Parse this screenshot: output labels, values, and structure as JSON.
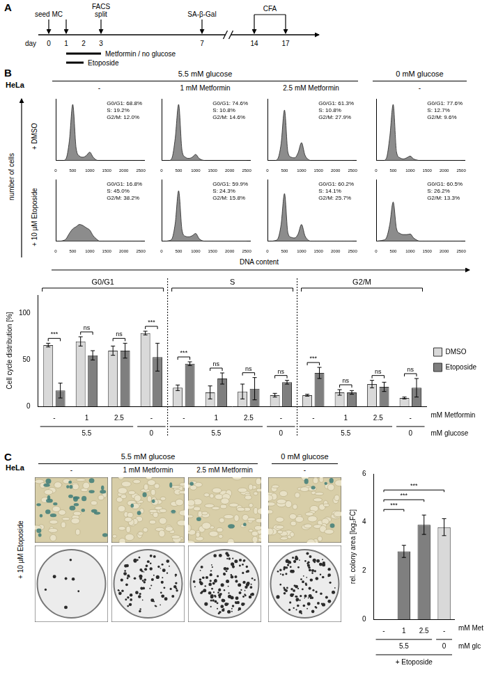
{
  "panel_labels": [
    "A",
    "B",
    "C"
  ],
  "timeline": {
    "day_label": "day",
    "days": [
      0,
      1,
      2,
      3,
      7,
      14,
      17
    ],
    "arrows": [
      0,
      1,
      3,
      7,
      14,
      17
    ],
    "events": [
      {
        "day": 0,
        "label": [
          "seed MC"
        ]
      },
      {
        "day": 3,
        "label": [
          "FACS",
          "split"
        ]
      },
      {
        "day": 7,
        "label": [
          "SA-β-Gal"
        ]
      }
    ],
    "cfa": {
      "label": "CFA",
      "from": 14,
      "to": 17
    },
    "treatments": [
      {
        "label": "Metformin / no glucose",
        "from": 1,
        "to": 3
      },
      {
        "label": "Etoposide",
        "from": 1,
        "to": 2
      }
    ]
  },
  "panel_b": {
    "cell_line": "HeLa",
    "column_groups": [
      {
        "label": "5.5 mM glucose",
        "columns": 3
      },
      {
        "label": "0 mM glucose",
        "columns": 1
      }
    ],
    "columns": [
      "-",
      "1 mM Metformin",
      "2.5 mM Metformin",
      "-"
    ],
    "rows": [
      "+ DMSO",
      "+ 10 µM Etoposide"
    ],
    "y_label": "number of cells",
    "x_label": "DNA content"
  },
  "panel_c": {
    "cell_line": "HeLa",
    "column_groups": [
      {
        "label": "5.5 mM glucose",
        "columns": 3
      },
      {
        "label": "0 mM glucose",
        "columns": 1
      }
    ],
    "columns": [
      "-",
      "1 mM Metformin",
      "2.5 mM Metformin",
      "-"
    ],
    "row_label": "+ 10 µM Etoposide"
  },
  "chart_data": [
    {
      "type": "area",
      "color": "#8c8c8c",
      "grid": false,
      "tick_labels": "x",
      "x": [
        0,
        100,
        200,
        300,
        400,
        500,
        600,
        700,
        800,
        900,
        1000,
        1100,
        1200,
        1300,
        1400,
        1500,
        1600,
        1700,
        1800,
        1900,
        2000,
        2100,
        2200,
        2300,
        2400,
        2500
      ],
      "values": [
        0,
        0,
        0,
        3,
        35,
        100,
        22,
        8,
        6,
        9,
        15,
        6,
        1,
        0,
        0,
        0,
        0,
        0,
        0,
        0,
        0,
        0,
        0,
        0,
        0,
        0
      ],
      "annotations": [
        "G0/G1: 68.8%",
        "S: 19.2%",
        "G2/M: 12.0%"
      ],
      "xlim": [
        0,
        2600
      ],
      "xticks": [
        0,
        500,
        1000,
        1500,
        2000,
        2500
      ],
      "ylim": [
        0,
        110
      ]
    },
    {
      "type": "area",
      "color": "#8c8c8c",
      "grid": false,
      "tick_labels": "x",
      "x": [
        0,
        100,
        200,
        300,
        400,
        500,
        600,
        700,
        800,
        900,
        1000,
        1100,
        1200,
        1300,
        1400,
        1500,
        1600,
        1700,
        1800,
        1900,
        2000,
        2100,
        2200,
        2300,
        2400,
        2500
      ],
      "values": [
        0,
        0,
        0,
        4,
        40,
        100,
        18,
        6,
        4,
        6,
        11,
        4,
        1,
        0,
        0,
        0,
        0,
        0,
        0,
        0,
        0,
        0,
        0,
        0,
        0,
        0
      ],
      "annotations": [
        "G0/G1: 74.6%",
        "S: 10.8%",
        "G2/M: 14.6%"
      ],
      "xlim": [
        0,
        2600
      ],
      "xticks": [
        0,
        500,
        1000,
        1500,
        2000,
        2500
      ],
      "ylim": [
        0,
        110
      ]
    },
    {
      "type": "area",
      "color": "#8c8c8c",
      "grid": false,
      "tick_labels": "x",
      "x": [
        0,
        100,
        200,
        300,
        400,
        500,
        600,
        700,
        800,
        900,
        1000,
        1100,
        1200,
        1300,
        1400,
        1500,
        1600,
        1700,
        1800,
        1900,
        2000,
        2100,
        2200,
        2300,
        2400,
        2500
      ],
      "values": [
        0,
        0,
        0,
        3,
        30,
        90,
        15,
        6,
        5,
        14,
        32,
        10,
        2,
        0,
        0,
        0,
        0,
        0,
        0,
        0,
        0,
        0,
        0,
        0,
        0,
        0
      ],
      "annotations": [
        "G0/G1: 61.3%",
        "S: 10.8%",
        "G2/M: 27.9%"
      ],
      "xlim": [
        0,
        2600
      ],
      "xticks": [
        0,
        500,
        1000,
        1500,
        2000,
        2500
      ],
      "ylim": [
        0,
        110
      ]
    },
    {
      "type": "area",
      "color": "#8c8c8c",
      "grid": false,
      "tick_labels": "x",
      "x": [
        0,
        100,
        200,
        300,
        400,
        500,
        600,
        700,
        800,
        900,
        1000,
        1100,
        1200,
        1300,
        1400,
        1500,
        1600,
        1700,
        1800,
        1900,
        2000,
        2100,
        2200,
        2300,
        2400,
        2500
      ],
      "values": [
        0,
        0,
        0,
        4,
        42,
        100,
        15,
        5,
        3,
        5,
        8,
        3,
        1,
        0,
        0,
        0,
        0,
        0,
        0,
        0,
        0,
        0,
        0,
        0,
        0,
        0
      ],
      "annotations": [
        "G0/G1: 77.6%",
        "S: 12.7%",
        "G2/M: 9.6%"
      ],
      "xlim": [
        0,
        2600
      ],
      "xticks": [
        0,
        500,
        1000,
        1500,
        2000,
        2500
      ],
      "ylim": [
        0,
        110
      ]
    },
    {
      "type": "area",
      "color": "#8c8c8c",
      "grid": false,
      "tick_labels": "x",
      "x": [
        0,
        100,
        200,
        300,
        400,
        500,
        600,
        700,
        800,
        900,
        1000,
        1100,
        1200,
        1300,
        1400,
        1500,
        1600,
        1700,
        1800,
        1900,
        2000,
        2100,
        2200,
        2300,
        2400,
        2500
      ],
      "values": [
        0,
        0,
        1,
        4,
        14,
        22,
        26,
        30,
        28,
        24,
        20,
        10,
        4,
        0,
        0,
        0,
        0,
        0,
        0,
        0,
        0,
        0,
        0,
        0,
        0,
        0
      ],
      "annotations": [
        "G0/G1: 16.8%",
        "S: 45.0%",
        "G2/M: 38.2%"
      ],
      "xlim": [
        0,
        2600
      ],
      "xticks": [
        0,
        500,
        1000,
        1500,
        2000,
        2500
      ],
      "ylim": [
        0,
        110
      ]
    },
    {
      "type": "area",
      "color": "#8c8c8c",
      "grid": false,
      "tick_labels": "x",
      "x": [
        0,
        100,
        200,
        300,
        400,
        500,
        600,
        700,
        800,
        900,
        1000,
        1100,
        1200,
        1300,
        1400,
        1500,
        1600,
        1700,
        1800,
        1900,
        2000,
        2100,
        2200,
        2300,
        2400,
        2500
      ],
      "values": [
        0,
        0,
        1,
        4,
        32,
        90,
        20,
        9,
        8,
        10,
        14,
        5,
        1,
        0,
        0,
        0,
        0,
        0,
        0,
        0,
        0,
        0,
        0,
        0,
        0,
        0
      ],
      "annotations": [
        "G0/G1: 59.9%",
        "S: 24.3%",
        "G2/M: 15.8%"
      ],
      "xlim": [
        0,
        2600
      ],
      "xticks": [
        0,
        500,
        1000,
        1500,
        2000,
        2500
      ],
      "ylim": [
        0,
        110
      ]
    },
    {
      "type": "area",
      "color": "#8c8c8c",
      "grid": false,
      "tick_labels": "x",
      "x": [
        0,
        100,
        200,
        300,
        400,
        500,
        600,
        700,
        800,
        900,
        1000,
        1100,
        1200,
        1300,
        1400,
        1500,
        1600,
        1700,
        1800,
        1900,
        2000,
        2100,
        2200,
        2300,
        2400,
        2500
      ],
      "values": [
        0,
        0,
        1,
        4,
        30,
        85,
        15,
        7,
        6,
        13,
        30,
        10,
        2,
        0,
        0,
        0,
        0,
        0,
        0,
        0,
        0,
        0,
        0,
        0,
        0,
        0
      ],
      "annotations": [
        "G0/G1: 60.2%",
        "S: 14.1%",
        "G2/M: 25.7%"
      ],
      "xlim": [
        0,
        2600
      ],
      "xticks": [
        0,
        500,
        1000,
        1500,
        2000,
        2500
      ],
      "ylim": [
        0,
        110
      ]
    },
    {
      "type": "area",
      "color": "#8c8c8c",
      "grid": false,
      "tick_labels": "x",
      "x": [
        0,
        100,
        200,
        300,
        400,
        500,
        600,
        700,
        800,
        900,
        1000,
        1100,
        1200,
        1300,
        1400,
        1500,
        1600,
        1700,
        1800,
        1900,
        2000,
        2100,
        2200,
        2300,
        2400,
        2500
      ],
      "values": [
        0,
        1,
        2,
        6,
        30,
        70,
        22,
        14,
        12,
        12,
        13,
        6,
        2,
        0,
        0,
        0,
        0,
        0,
        0,
        0,
        0,
        0,
        0,
        0,
        0,
        0
      ],
      "annotations": [
        "G0/G1: 60.5%",
        "S: 26.2%",
        "G2/M: 13.3%"
      ],
      "xlim": [
        0,
        2600
      ],
      "xticks": [
        0,
        500,
        1000,
        1500,
        2000,
        2500
      ],
      "ylim": [
        0,
        110
      ]
    },
    {
      "type": "bar",
      "grid": false,
      "legend": "right",
      "categories": [
        "-",
        "1",
        "2.5",
        "-",
        "-",
        "1",
        "2.5",
        "-",
        "-",
        "1",
        "2.5",
        "-"
      ],
      "category_unit": "mM Metformin",
      "second_row": {
        "unit": "mM glucose",
        "spans": [
          {
            "label": "5.5",
            "start": 0,
            "end": 2
          },
          {
            "label": "0",
            "start": 3,
            "end": 3
          },
          {
            "label": "5.5",
            "start": 4,
            "end": 6
          },
          {
            "label": "0",
            "start": 7,
            "end": 7
          },
          {
            "label": "5.5",
            "start": 8,
            "end": 10
          },
          {
            "label": "0",
            "start": 11,
            "end": 11
          }
        ]
      },
      "groups": [
        {
          "label": "G0/G1",
          "start": 0,
          "end": 3
        },
        {
          "label": "S",
          "start": 4,
          "end": 7
        },
        {
          "label": "G2/M",
          "start": 8,
          "end": 11
        }
      ],
      "series": [
        {
          "name": "DMSO",
          "color": "#d9d9d9",
          "values": [
            66,
            70,
            60,
            79,
            20,
            15,
            16,
            12,
            12,
            15,
            24,
            9
          ],
          "errors": [
            2,
            5,
            5,
            2,
            3,
            7,
            8,
            2,
            1,
            3,
            4,
            1
          ]
        },
        {
          "name": "Etoposide",
          "color": "#7f7f7f",
          "values": [
            17,
            55,
            60,
            53,
            46,
            30,
            19,
            26,
            36,
            15,
            21,
            20
          ],
          "errors": [
            8,
            5,
            8,
            15,
            2,
            6,
            12,
            2,
            6,
            2,
            5,
            10
          ]
        }
      ],
      "significance": [
        "***",
        "ns",
        "ns",
        "***",
        "***",
        "ns",
        "ns",
        "ns",
        "***",
        "ns",
        "ns",
        "ns"
      ],
      "y_label": "Cell cycle distribution [%]",
      "ylim": [
        0,
        120
      ],
      "yticks": [
        0,
        50,
        100
      ]
    },
    {
      "type": "bar",
      "grid": false,
      "categories": [
        "-",
        "1",
        "2.5",
        "-"
      ],
      "category_unit": "mM Met",
      "second_row": {
        "unit": "mM glc",
        "spans": [
          {
            "label": "5.5",
            "start": 0,
            "end": 2
          },
          {
            "label": "0",
            "start": 3,
            "end": 3
          }
        ]
      },
      "bracket": {
        "label": "+ Etoposide",
        "start": 0,
        "end": 3
      },
      "values": [
        0,
        2.8,
        3.9,
        3.8
      ],
      "errors": [
        0,
        0.25,
        0.4,
        0.35
      ],
      "colors": [
        "#d9d9d9",
        "#7f7f7f",
        "#7f7f7f",
        "#d9d9d9"
      ],
      "significance": [
        {
          "from": 0,
          "to": 1,
          "label": "***"
        },
        {
          "from": 0,
          "to": 2,
          "label": "***"
        },
        {
          "from": 0,
          "to": 3,
          "label": "***"
        }
      ],
      "y_label": "rel. colony area [log₂FC]",
      "ylim": [
        0,
        6
      ],
      "yticks": [
        0,
        2,
        4,
        6
      ]
    }
  ]
}
